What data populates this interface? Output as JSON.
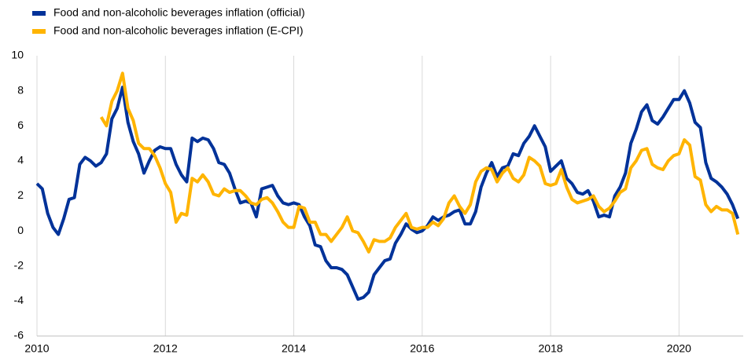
{
  "chart_data": {
    "type": "line",
    "x": [
      2010,
      2010.083,
      2010.167,
      2010.25,
      2010.333,
      2010.417,
      2010.5,
      2010.583,
      2010.667,
      2010.75,
      2010.833,
      2010.917,
      2011,
      2011.083,
      2011.167,
      2011.25,
      2011.333,
      2011.417,
      2011.5,
      2011.583,
      2011.667,
      2011.75,
      2011.833,
      2011.917,
      2012,
      2012.083,
      2012.167,
      2012.25,
      2012.333,
      2012.417,
      2012.5,
      2012.583,
      2012.667,
      2012.75,
      2012.833,
      2012.917,
      2013,
      2013.083,
      2013.167,
      2013.25,
      2013.333,
      2013.417,
      2013.5,
      2013.583,
      2013.667,
      2013.75,
      2013.833,
      2013.917,
      2014,
      2014.083,
      2014.167,
      2014.25,
      2014.333,
      2014.417,
      2014.5,
      2014.583,
      2014.667,
      2014.75,
      2014.833,
      2014.917,
      2015,
      2015.083,
      2015.167,
      2015.25,
      2015.333,
      2015.417,
      2015.5,
      2015.583,
      2015.667,
      2015.75,
      2015.833,
      2015.917,
      2016,
      2016.083,
      2016.167,
      2016.25,
      2016.333,
      2016.417,
      2016.5,
      2016.583,
      2016.667,
      2016.75,
      2016.833,
      2016.917,
      2017,
      2017.083,
      2017.167,
      2017.25,
      2017.333,
      2017.417,
      2017.5,
      2017.583,
      2017.667,
      2017.75,
      2017.833,
      2017.917,
      2018,
      2018.083,
      2018.167,
      2018.25,
      2018.333,
      2018.417,
      2018.5,
      2018.583,
      2018.667,
      2018.75,
      2018.833,
      2018.917,
      2019,
      2019.083,
      2019.167,
      2019.25,
      2019.333,
      2019.417,
      2019.5,
      2019.583,
      2019.667,
      2019.75,
      2019.833,
      2019.917,
      2020,
      2020.083,
      2020.167,
      2020.25,
      2020.333,
      2020.417,
      2020.5,
      2020.583,
      2020.667,
      2020.75,
      2020.833,
      2020.917
    ],
    "series": [
      {
        "name": "Food and non-alcoholic beverages inflation (official)",
        "color": "#003299",
        "values": [
          2.7,
          2.4,
          1.0,
          0.2,
          -0.2,
          0.7,
          1.8,
          1.9,
          3.8,
          4.2,
          4.0,
          3.7,
          3.9,
          4.4,
          6.4,
          7.0,
          8.2,
          6.2,
          5.1,
          4.4,
          3.3,
          4.0,
          4.6,
          4.8,
          4.7,
          4.7,
          3.8,
          3.2,
          2.8,
          5.3,
          5.1,
          5.3,
          5.2,
          4.7,
          3.9,
          3.8,
          3.3,
          2.4,
          1.6,
          1.7,
          1.6,
          0.8,
          2.4,
          2.5,
          2.6,
          2.0,
          1.6,
          1.5,
          1.6,
          1.5,
          0.8,
          0.3,
          -0.8,
          -0.9,
          -1.7,
          -2.1,
          -2.1,
          -2.2,
          -2.5,
          -3.2,
          -3.9,
          -3.8,
          -3.5,
          -2.5,
          -2.1,
          -1.7,
          -1.6,
          -0.7,
          -0.2,
          0.4,
          0.1,
          -0.1,
          0.0,
          0.3,
          0.8,
          0.6,
          0.8,
          0.9,
          1.1,
          1.2,
          0.4,
          0.4,
          1.1,
          2.5,
          3.3,
          3.9,
          3.1,
          3.6,
          3.7,
          4.4,
          4.3,
          5.0,
          5.4,
          6.0,
          5.4,
          4.8,
          3.4,
          3.7,
          4.0,
          3.0,
          2.7,
          2.2,
          2.1,
          2.3,
          1.7,
          0.8,
          0.9,
          0.8,
          2.0,
          2.5,
          3.3,
          5.0,
          5.8,
          6.8,
          7.2,
          6.3,
          6.1,
          6.5,
          7.0,
          7.5,
          7.5,
          8.0,
          7.3,
          6.2,
          5.9,
          3.9,
          3.0,
          2.8,
          2.5,
          2.1,
          1.5,
          0.7
        ]
      },
      {
        "name": "Food and non-alcoholic beverages inflation (E-CPI)",
        "color": "#ffb400",
        "values": [
          null,
          null,
          null,
          null,
          null,
          null,
          null,
          null,
          null,
          null,
          null,
          null,
          6.5,
          6.0,
          7.4,
          8.0,
          9.0,
          7.0,
          6.3,
          5.0,
          4.7,
          4.7,
          4.3,
          3.6,
          2.7,
          2.2,
          0.5,
          1.0,
          0.9,
          3.0,
          2.8,
          3.2,
          2.8,
          2.1,
          2.0,
          2.4,
          2.2,
          2.3,
          2.3,
          2.0,
          1.6,
          1.5,
          1.8,
          1.9,
          1.6,
          1.1,
          0.5,
          0.2,
          0.2,
          1.4,
          1.3,
          0.5,
          0.5,
          -0.2,
          -0.2,
          -0.6,
          -0.2,
          0.2,
          0.8,
          0.0,
          -0.1,
          -0.6,
          -1.2,
          -0.5,
          -0.6,
          -0.6,
          -0.4,
          0.2,
          0.6,
          1.0,
          0.2,
          0.1,
          0.2,
          0.2,
          0.5,
          0.3,
          0.7,
          1.6,
          2.0,
          1.4,
          1.0,
          1.5,
          2.8,
          3.4,
          3.6,
          3.5,
          2.8,
          3.3,
          3.6,
          3.0,
          2.8,
          3.2,
          4.2,
          4.0,
          3.7,
          2.7,
          2.6,
          2.7,
          3.5,
          2.5,
          1.8,
          1.6,
          1.7,
          1.8,
          2.0,
          1.4,
          1.1,
          1.3,
          1.7,
          2.2,
          2.4,
          3.6,
          4.0,
          4.6,
          4.7,
          3.8,
          3.6,
          3.5,
          4.0,
          4.3,
          4.4,
          5.2,
          4.9,
          3.1,
          2.9,
          1.5,
          1.1,
          1.4,
          1.2,
          1.2,
          1.0,
          -0.2
        ]
      }
    ],
    "xlim": [
      2010,
      2021
    ],
    "xticks": [
      2010,
      2012,
      2014,
      2016,
      2018,
      2020
    ],
    "ylim": [
      -6,
      10
    ],
    "yticks": [
      -6,
      -4,
      -2,
      0,
      2,
      4,
      6,
      8,
      10
    ],
    "grid": true,
    "legend": "top-left"
  }
}
